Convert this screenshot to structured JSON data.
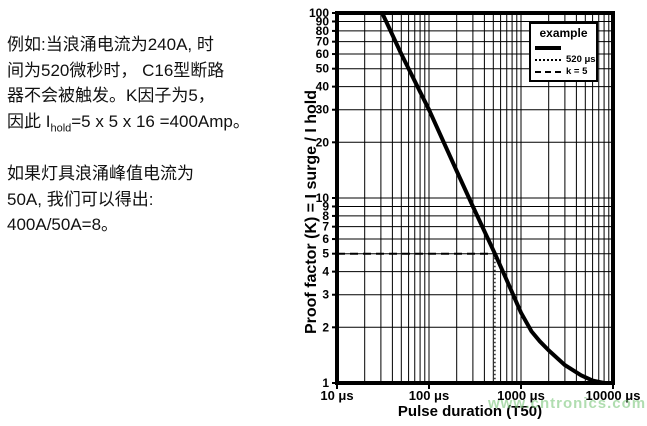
{
  "left_text": {
    "para1_lines": [
      "例如:当浪涌电流为240A, 时",
      "间为520微秒时， C16型断路",
      "器不会被触发。K因子为5，"
    ],
    "para1_line4": {
      "pre": "因此 I",
      "sub": "hold",
      "post": "=5 x 5 x 16 =400Amp。"
    },
    "para2_lines": [
      "如果灯具浪涌峰值电流为",
      "50A, 我们可以得出:",
      "400A/50A=8。"
    ]
  },
  "watermark": {
    "text": "www.cntronics.com",
    "color": "#7cc87c"
  },
  "chart_data": {
    "type": "line",
    "title": "",
    "xlabel": "Pulse duration (T50)",
    "ylabel": "Proof factor (K) = I surge / I hold",
    "xscale": "log",
    "yscale": "log",
    "xlim": [
      10,
      10000
    ],
    "ylim": [
      1,
      100
    ],
    "grid": "full black log grid, minor lines at 2-9 within each decade, on white",
    "x_ticks": [
      {
        "value": 10,
        "label": "10 μs"
      },
      {
        "value": 100,
        "label": "100 μs"
      },
      {
        "value": 1000,
        "label": "1000 μs"
      },
      {
        "value": 10000,
        "label": "10000 μs"
      }
    ],
    "y_ticks": [
      {
        "value": 1,
        "label": "1"
      },
      {
        "value": 2,
        "label": "2"
      },
      {
        "value": 3,
        "label": "3"
      },
      {
        "value": 4,
        "label": "4"
      },
      {
        "value": 5,
        "label": "5"
      },
      {
        "value": 6,
        "label": "6"
      },
      {
        "value": 7,
        "label": "7"
      },
      {
        "value": 8,
        "label": "8"
      },
      {
        "value": 9,
        "label": "9"
      },
      {
        "value": 10,
        "label": "10"
      },
      {
        "value": 20,
        "label": "20"
      },
      {
        "value": 30,
        "label": "30"
      },
      {
        "value": 40,
        "label": "40"
      },
      {
        "value": 50,
        "label": "50"
      },
      {
        "value": 60,
        "label": "60"
      },
      {
        "value": 70,
        "label": "70"
      },
      {
        "value": 80,
        "label": "80"
      },
      {
        "value": 90,
        "label": "90"
      },
      {
        "value": 100,
        "label": "100"
      }
    ],
    "legend": {
      "title": "example",
      "position": "top-right",
      "entries": [
        {
          "style": "solid",
          "label": ""
        },
        {
          "style": "dotted",
          "label": "520 μs"
        },
        {
          "style": "dashed",
          "label": "k = 5"
        }
      ]
    },
    "series": [
      {
        "name": "breaker-trip-curve",
        "style": "solid",
        "color": "#000000",
        "points": [
          [
            31,
            100
          ],
          [
            50,
            60
          ],
          [
            100,
            30
          ],
          [
            200,
            14
          ],
          [
            300,
            9
          ],
          [
            520,
            5
          ],
          [
            700,
            3.6
          ],
          [
            1000,
            2.4
          ],
          [
            1300,
            1.9
          ],
          [
            1600,
            1.68
          ],
          [
            2000,
            1.5
          ],
          [
            3000,
            1.25
          ],
          [
            4500,
            1.1
          ],
          [
            6000,
            1.03
          ],
          [
            8000,
            1.0
          ]
        ]
      },
      {
        "name": "example-520us-line",
        "style": "dotted",
        "color": "#000000",
        "points": [
          [
            520,
            5
          ],
          [
            520,
            1
          ]
        ]
      },
      {
        "name": "example-k5-line",
        "style": "dashed",
        "color": "#000000",
        "points": [
          [
            10,
            5
          ],
          [
            520,
            5
          ]
        ]
      }
    ]
  }
}
